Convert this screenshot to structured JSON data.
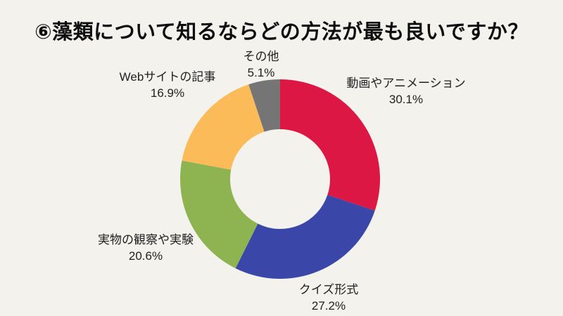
{
  "page": {
    "background_color": "#F3F2EC",
    "text_color": "#1F1F1F"
  },
  "title": "⑥藻類について知るならどの方法が最も良いですか？",
  "chart_data": {
    "type": "pie",
    "subtype": "donut",
    "title": "⑥藻類について知るならどの方法が最も良いですか？",
    "categories": [
      "動画やアニメーション",
      "クイズ形式",
      "実物の観察や実験",
      "Webサイトの記事",
      "その他"
    ],
    "values": [
      30.1,
      27.2,
      20.6,
      16.9,
      5.1
    ],
    "unit": "%",
    "colors": [
      "#DC1743",
      "#3A47A9",
      "#8DB450",
      "#FBBB58",
      "#757575"
    ],
    "start_angle": "12-oclock",
    "direction": "clockwise",
    "inner_radius_ratio": 0.5,
    "labels_position": "outside",
    "legend": "none",
    "slices": [
      {
        "label": "動画やアニメーション",
        "pct_label": "30.1%",
        "value": 30.1,
        "color": "#DC1743"
      },
      {
        "label": "クイズ形式",
        "pct_label": "27.2%",
        "value": 27.2,
        "color": "#3A47A9"
      },
      {
        "label": "実物の観察や実験",
        "pct_label": "20.6%",
        "value": 20.6,
        "color": "#8DB450"
      },
      {
        "label": "Webサイトの記事",
        "pct_label": "16.9%",
        "value": 16.9,
        "color": "#FBBB58"
      },
      {
        "label": "その他",
        "pct_label": "5.1%",
        "value": 5.1,
        "color": "#757575"
      }
    ]
  }
}
